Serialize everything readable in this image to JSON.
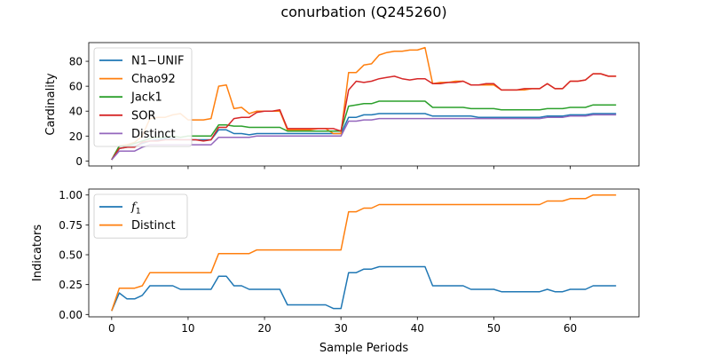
{
  "figure": {
    "title": "conurbation (Q245260)",
    "xlabel": "Sample Periods"
  },
  "chart_data": [
    {
      "type": "line",
      "ylabel": "Cardinality",
      "xlim": [
        -3,
        69
      ],
      "ylim": [
        -4,
        95
      ],
      "xticks": [
        0,
        10,
        20,
        30,
        40,
        50,
        60
      ],
      "yticks": [
        0,
        20,
        40,
        60,
        80
      ],
      "grid": false,
      "legend_position": "upper-left",
      "series": [
        {
          "name": "N1−UNIF",
          "color": "#1f77b4",
          "x": [
            0,
            1,
            2,
            3,
            4,
            5,
            6,
            7,
            8,
            9,
            10,
            11,
            12,
            13,
            14,
            15,
            16,
            17,
            18,
            19,
            20,
            21,
            22,
            23,
            24,
            25,
            26,
            27,
            28,
            29,
            30,
            31,
            32,
            33,
            34,
            35,
            36,
            37,
            38,
            39,
            40,
            41,
            42,
            43,
            44,
            45,
            46,
            47,
            48,
            49,
            50,
            51,
            52,
            53,
            54,
            55,
            56,
            57,
            58,
            59,
            60,
            61,
            62,
            63,
            64,
            65,
            66
          ],
          "y": [
            1,
            10,
            11,
            12,
            14,
            16,
            17,
            18,
            18,
            17,
            17,
            17,
            17,
            17,
            25,
            25,
            22,
            22,
            21,
            22,
            22,
            22,
            22,
            22,
            22,
            22,
            22,
            22,
            22,
            22,
            22,
            35,
            35,
            37,
            37,
            38,
            38,
            38,
            38,
            38,
            38,
            38,
            36,
            36,
            36,
            36,
            36,
            36,
            35,
            35,
            35,
            35,
            35,
            35,
            35,
            35,
            35,
            36,
            36,
            36,
            37,
            37,
            37,
            38,
            38,
            38,
            38
          ]
        },
        {
          "name": "Chao92",
          "color": "#ff7f0e",
          "x": [
            0,
            1,
            2,
            3,
            4,
            5,
            6,
            7,
            8,
            9,
            10,
            11,
            12,
            13,
            14,
            15,
            16,
            17,
            18,
            19,
            20,
            21,
            22,
            23,
            24,
            25,
            26,
            27,
            28,
            29,
            30,
            31,
            32,
            33,
            34,
            35,
            36,
            37,
            38,
            39,
            40,
            41,
            42,
            43,
            44,
            45,
            46,
            47,
            48,
            49,
            50,
            51,
            52,
            53,
            54,
            55,
            56,
            57,
            58,
            59,
            60,
            61,
            62,
            63,
            64,
            65,
            66
          ],
          "y": [
            1,
            12,
            13,
            15,
            20,
            34,
            35,
            35,
            37,
            38,
            33,
            33,
            33,
            34,
            60,
            61,
            42,
            43,
            38,
            40,
            40,
            40,
            40,
            25,
            25,
            25,
            25,
            26,
            26,
            22,
            22,
            71,
            71,
            77,
            78,
            85,
            87,
            88,
            88,
            89,
            89,
            91,
            62,
            63,
            63,
            64,
            64,
            61,
            61,
            61,
            61,
            57,
            57,
            57,
            57,
            58,
            58,
            62,
            58,
            58,
            64,
            64,
            65,
            70,
            70,
            68,
            68
          ]
        },
        {
          "name": "Jack1",
          "color": "#2ca02c",
          "x": [
            0,
            1,
            2,
            3,
            4,
            5,
            6,
            7,
            8,
            9,
            10,
            11,
            12,
            13,
            14,
            15,
            16,
            17,
            18,
            19,
            20,
            21,
            22,
            23,
            24,
            25,
            26,
            27,
            28,
            29,
            30,
            31,
            32,
            33,
            34,
            35,
            36,
            37,
            38,
            39,
            40,
            41,
            42,
            43,
            44,
            45,
            46,
            47,
            48,
            49,
            50,
            51,
            52,
            53,
            54,
            55,
            56,
            57,
            58,
            59,
            60,
            61,
            62,
            63,
            64,
            65,
            66
          ],
          "y": [
            1,
            12,
            12,
            14,
            16,
            18,
            19,
            19,
            20,
            19,
            20,
            20,
            20,
            20,
            29,
            29,
            28,
            28,
            27,
            27,
            27,
            27,
            27,
            24,
            24,
            24,
            24,
            24,
            24,
            24,
            24,
            44,
            45,
            46,
            46,
            48,
            48,
            48,
            48,
            48,
            48,
            48,
            43,
            43,
            43,
            43,
            43,
            42,
            42,
            42,
            42,
            41,
            41,
            41,
            41,
            41,
            41,
            42,
            42,
            42,
            43,
            43,
            43,
            45,
            45,
            45,
            45
          ]
        },
        {
          "name": "SOR",
          "color": "#d62728",
          "x": [
            0,
            1,
            2,
            3,
            4,
            5,
            6,
            7,
            8,
            9,
            10,
            11,
            12,
            13,
            14,
            15,
            16,
            17,
            18,
            19,
            20,
            21,
            22,
            23,
            24,
            25,
            26,
            27,
            28,
            29,
            30,
            31,
            32,
            33,
            34,
            35,
            36,
            37,
            38,
            39,
            40,
            41,
            42,
            43,
            44,
            45,
            46,
            47,
            48,
            49,
            50,
            51,
            52,
            53,
            54,
            55,
            56,
            57,
            58,
            59,
            60,
            61,
            62,
            63,
            64,
            65,
            66
          ],
          "y": [
            1,
            10,
            11,
            11,
            15,
            16,
            16,
            17,
            17,
            17,
            17,
            17,
            16,
            17,
            27,
            27,
            34,
            35,
            35,
            39,
            40,
            40,
            41,
            26,
            26,
            26,
            26,
            26,
            26,
            26,
            24,
            57,
            64,
            63,
            64,
            66,
            67,
            68,
            66,
            65,
            66,
            66,
            62,
            62,
            63,
            63,
            64,
            61,
            61,
            62,
            62,
            57,
            57,
            57,
            58,
            58,
            58,
            62,
            58,
            58,
            64,
            64,
            65,
            70,
            70,
            68,
            68
          ]
        },
        {
          "name": "Distinct",
          "color": "#9467bd",
          "x": [
            0,
            1,
            2,
            3,
            4,
            5,
            6,
            7,
            8,
            9,
            10,
            11,
            12,
            13,
            14,
            15,
            16,
            17,
            18,
            19,
            20,
            21,
            22,
            23,
            24,
            25,
            26,
            27,
            28,
            29,
            30,
            31,
            32,
            33,
            34,
            35,
            36,
            37,
            38,
            39,
            40,
            41,
            42,
            43,
            44,
            45,
            46,
            47,
            48,
            49,
            50,
            51,
            52,
            53,
            54,
            55,
            56,
            57,
            58,
            59,
            60,
            61,
            62,
            63,
            64,
            65,
            66
          ],
          "y": [
            1,
            8,
            8,
            8,
            11,
            13,
            13,
            13,
            13,
            13,
            13,
            13,
            13,
            13,
            19,
            19,
            19,
            19,
            19,
            20,
            20,
            20,
            20,
            20,
            20,
            20,
            20,
            20,
            20,
            20,
            20,
            32,
            32,
            33,
            33,
            34,
            34,
            34,
            34,
            34,
            34,
            34,
            34,
            34,
            34,
            34,
            34,
            34,
            34,
            34,
            34,
            34,
            34,
            34,
            34,
            34,
            34,
            35,
            35,
            35,
            36,
            36,
            36,
            37,
            37,
            37,
            37
          ]
        }
      ]
    },
    {
      "type": "line",
      "ylabel": "Indicators",
      "xlim": [
        -3,
        69
      ],
      "ylim": [
        -0.02,
        1.05
      ],
      "xticks": [
        0,
        10,
        20,
        30,
        40,
        50,
        60
      ],
      "yticks": [
        0.0,
        0.25,
        0.5,
        0.75,
        1.0
      ],
      "ytick_labels": [
        "0.00",
        "0.25",
        "0.50",
        "0.75",
        "1.00"
      ],
      "xtick_labels": [
        "0",
        "10",
        "20",
        "30",
        "40",
        "50",
        "60"
      ],
      "grid": false,
      "legend_position": "upper-left",
      "series": [
        {
          "name": "f1",
          "label_main": "f",
          "label_sub": "1",
          "color": "#1f77b4",
          "x": [
            0,
            1,
            2,
            3,
            4,
            5,
            6,
            7,
            8,
            9,
            10,
            11,
            12,
            13,
            14,
            15,
            16,
            17,
            18,
            19,
            20,
            21,
            22,
            23,
            24,
            25,
            26,
            27,
            28,
            29,
            30,
            31,
            32,
            33,
            34,
            35,
            36,
            37,
            38,
            39,
            40,
            41,
            42,
            43,
            44,
            45,
            46,
            47,
            48,
            49,
            50,
            51,
            52,
            53,
            54,
            55,
            56,
            57,
            58,
            59,
            60,
            61,
            62,
            63,
            64,
            65,
            66
          ],
          "y": [
            0.03,
            0.18,
            0.13,
            0.13,
            0.16,
            0.24,
            0.24,
            0.24,
            0.24,
            0.21,
            0.21,
            0.21,
            0.21,
            0.21,
            0.32,
            0.32,
            0.24,
            0.24,
            0.21,
            0.21,
            0.21,
            0.21,
            0.21,
            0.08,
            0.08,
            0.08,
            0.08,
            0.08,
            0.08,
            0.05,
            0.05,
            0.35,
            0.35,
            0.38,
            0.38,
            0.4,
            0.4,
            0.4,
            0.4,
            0.4,
            0.4,
            0.4,
            0.24,
            0.24,
            0.24,
            0.24,
            0.24,
            0.21,
            0.21,
            0.21,
            0.21,
            0.19,
            0.19,
            0.19,
            0.19,
            0.19,
            0.19,
            0.21,
            0.19,
            0.19,
            0.21,
            0.21,
            0.21,
            0.24,
            0.24,
            0.24,
            0.24
          ]
        },
        {
          "name": "Distinct",
          "color": "#ff7f0e",
          "x": [
            0,
            1,
            2,
            3,
            4,
            5,
            6,
            7,
            8,
            9,
            10,
            11,
            12,
            13,
            14,
            15,
            16,
            17,
            18,
            19,
            20,
            21,
            22,
            23,
            24,
            25,
            26,
            27,
            28,
            29,
            30,
            31,
            32,
            33,
            34,
            35,
            36,
            37,
            38,
            39,
            40,
            41,
            42,
            43,
            44,
            45,
            46,
            47,
            48,
            49,
            50,
            51,
            52,
            53,
            54,
            55,
            56,
            57,
            58,
            59,
            60,
            61,
            62,
            63,
            64,
            65,
            66
          ],
          "y": [
            0.03,
            0.22,
            0.22,
            0.22,
            0.24,
            0.35,
            0.35,
            0.35,
            0.35,
            0.35,
            0.35,
            0.35,
            0.35,
            0.35,
            0.51,
            0.51,
            0.51,
            0.51,
            0.51,
            0.54,
            0.54,
            0.54,
            0.54,
            0.54,
            0.54,
            0.54,
            0.54,
            0.54,
            0.54,
            0.54,
            0.54,
            0.86,
            0.86,
            0.89,
            0.89,
            0.92,
            0.92,
            0.92,
            0.92,
            0.92,
            0.92,
            0.92,
            0.92,
            0.92,
            0.92,
            0.92,
            0.92,
            0.92,
            0.92,
            0.92,
            0.92,
            0.92,
            0.92,
            0.92,
            0.92,
            0.92,
            0.92,
            0.95,
            0.95,
            0.95,
            0.97,
            0.97,
            0.97,
            1.0,
            1.0,
            1.0,
            1.0
          ]
        }
      ]
    }
  ]
}
